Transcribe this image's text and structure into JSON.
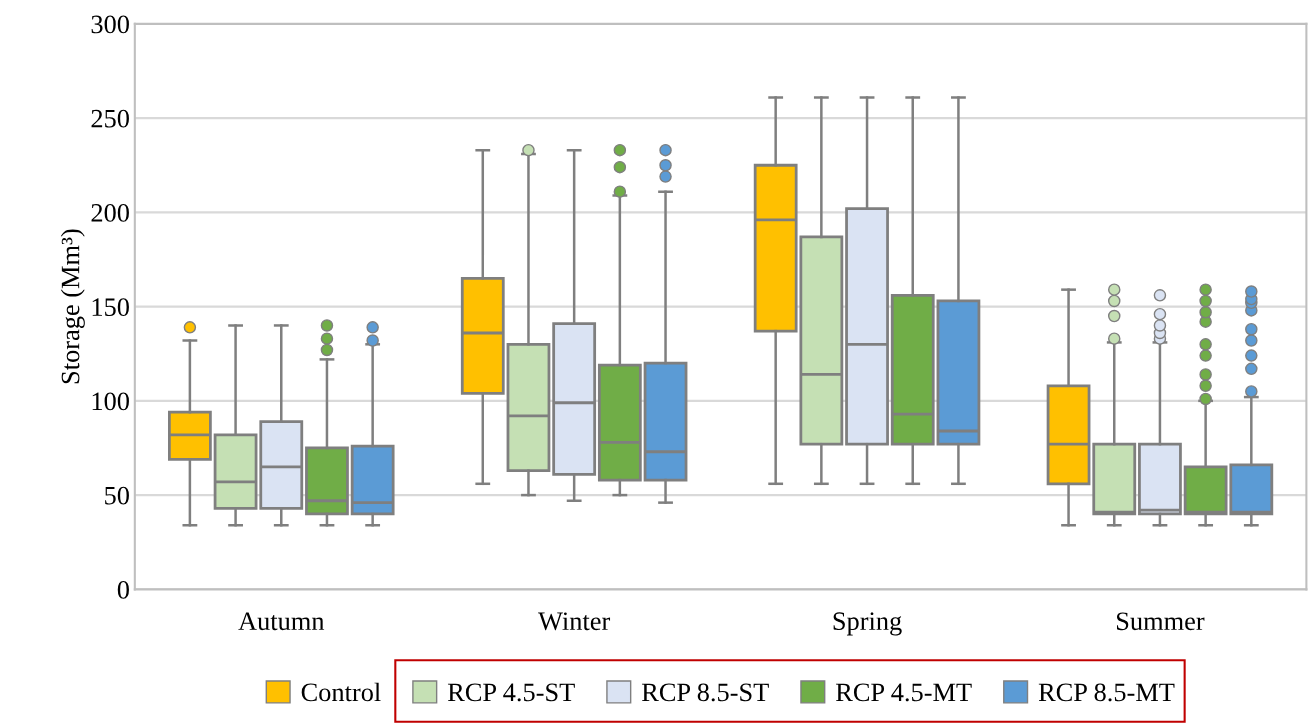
{
  "chart_data": {
    "type": "box",
    "ylabel": "Storage (Mm³)",
    "categories": [
      "Autumn",
      "Winter",
      "Spring",
      "Summer"
    ],
    "ylim": [
      0,
      300
    ],
    "yticks": [
      0,
      50,
      100,
      150,
      200,
      250,
      300
    ],
    "grid": "y",
    "legend": "bottom",
    "series": [
      {
        "name": "Control",
        "color": "#ffc000",
        "boxes": [
          {
            "low": 34,
            "q1": 69,
            "median": 82,
            "q3": 94,
            "high": 132,
            "outliers": [
              139
            ]
          },
          {
            "low": 56,
            "q1": 104,
            "median": 136,
            "q3": 165,
            "high": 233
          },
          {
            "low": 56,
            "q1": 137,
            "median": 196,
            "q3": 225,
            "high": 261
          },
          {
            "low": 34,
            "q1": 56,
            "median": 77,
            "q3": 108,
            "high": 159
          }
        ]
      },
      {
        "name": "RCP 4.5-ST",
        "color": "#c5e0b4",
        "boxes": [
          {
            "low": 34,
            "q1": 43,
            "median": 57,
            "q3": 82,
            "high": 140
          },
          {
            "low": 50,
            "q1": 63,
            "median": 92,
            "q3": 130,
            "high": 231,
            "outliers": [
              233
            ]
          },
          {
            "low": 56,
            "q1": 77,
            "median": 114,
            "q3": 187,
            "high": 261
          },
          {
            "low": 34,
            "q1": 40,
            "median": 41,
            "q3": 77,
            "high": 131,
            "outliers": [
              133,
              145,
              153,
              159
            ]
          }
        ]
      },
      {
        "name": "RCP 8.5-ST",
        "color": "#dae3f3",
        "boxes": [
          {
            "low": 34,
            "q1": 43,
            "median": 65,
            "q3": 89,
            "high": 140
          },
          {
            "low": 47,
            "q1": 61,
            "median": 99,
            "q3": 141,
            "high": 233
          },
          {
            "low": 56,
            "q1": 77,
            "median": 130,
            "q3": 202,
            "high": 261
          },
          {
            "low": 34,
            "q1": 40,
            "median": 42,
            "q3": 77,
            "high": 131,
            "outliers": [
              133,
              136,
              140,
              146,
              156
            ]
          }
        ]
      },
      {
        "name": "RCP 4.5-MT",
        "color": "#70ad47",
        "boxes": [
          {
            "low": 34,
            "q1": 40,
            "median": 47,
            "q3": 75,
            "high": 122,
            "outliers": [
              127,
              133,
              140
            ]
          },
          {
            "low": 50,
            "q1": 58,
            "median": 78,
            "q3": 119,
            "high": 209,
            "outliers": [
              211,
              224,
              233
            ]
          },
          {
            "low": 56,
            "q1": 77,
            "median": 93,
            "q3": 156,
            "high": 261
          },
          {
            "low": 34,
            "q1": 40,
            "median": 41,
            "q3": 65,
            "high": 100,
            "outliers": [
              101,
              108,
              114,
              124,
              130,
              142,
              147,
              153,
              159
            ]
          }
        ]
      },
      {
        "name": "RCP 8.5-MT",
        "color": "#5b9bd5",
        "boxes": [
          {
            "low": 34,
            "q1": 40,
            "median": 46,
            "q3": 76,
            "high": 130,
            "outliers": [
              132,
              139
            ]
          },
          {
            "low": 46,
            "q1": 58,
            "median": 73,
            "q3": 120,
            "high": 211,
            "outliers": [
              219,
              225,
              233
            ]
          },
          {
            "low": 56,
            "q1": 77,
            "median": 84,
            "q3": 153,
            "high": 261
          },
          {
            "low": 34,
            "q1": 40,
            "median": 41,
            "q3": 66,
            "high": 102,
            "outliers": [
              105,
              117,
              124,
              132,
              138,
              148,
              152,
              154,
              158
            ]
          }
        ]
      }
    ]
  }
}
